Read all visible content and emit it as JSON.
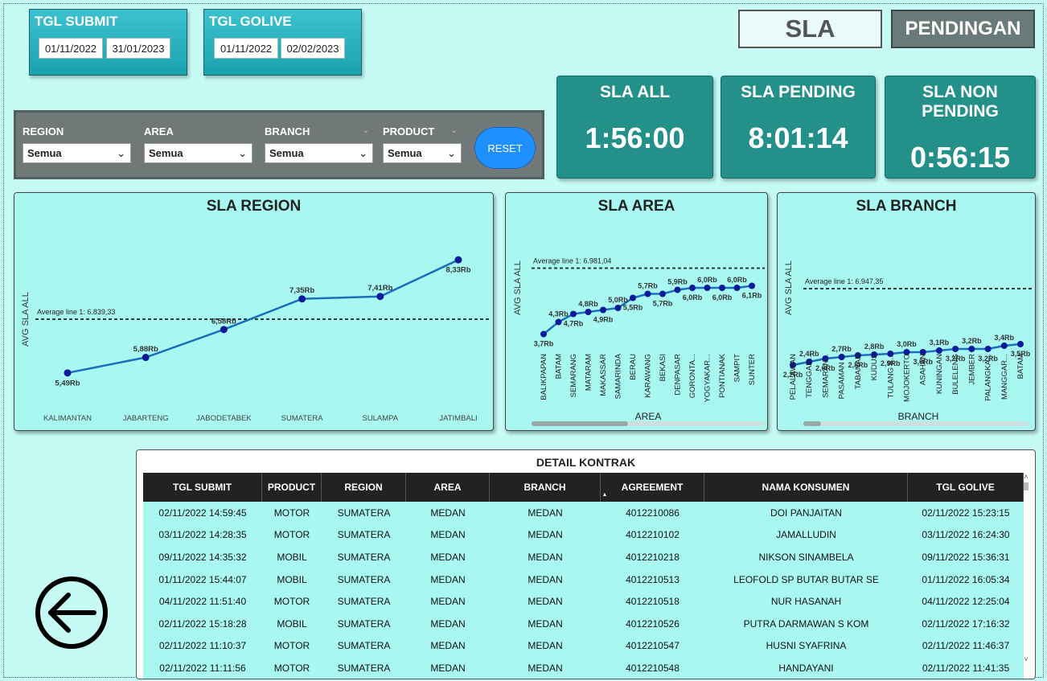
{
  "tgl_submit": {
    "title": "TGL SUBMIT",
    "from": "01/11/2022",
    "to": "31/01/2023"
  },
  "tgl_golive": {
    "title": "TGL GOLIVE",
    "from": "01/11/2022",
    "to": "02/02/2023"
  },
  "header": {
    "sla_label": "SLA",
    "pendingan_label": "PENDINGAN"
  },
  "kpis": {
    "all": {
      "title": "SLA ALL",
      "value": "1:56:00"
    },
    "pending": {
      "title": "SLA PENDING",
      "value": "8:01:14"
    },
    "non_pending": {
      "title": "SLA NON PENDING",
      "value": "0:56:15"
    }
  },
  "filters": {
    "region": {
      "label": "REGION",
      "value": "Semua"
    },
    "area": {
      "label": "AREA",
      "value": "Semua"
    },
    "branch": {
      "label": "BRANCH",
      "value": "Semua"
    },
    "product": {
      "label": "PRODUCT",
      "value": "Semua"
    },
    "reset_label": "RESET"
  },
  "colors": {
    "line": "#1a6fbd",
    "marker": "#0d1b9a",
    "kpi": "#23908a",
    "accent_button": "#1e90ff"
  },
  "icons": {
    "back": "arrow-left-circle-icon",
    "dropdown": "chevron-down-icon"
  },
  "chart_data": [
    {
      "type": "line",
      "title": "SLA REGION",
      "ylabel": "AVG SLA ALL",
      "xlabel": "",
      "categories": [
        "KALIMANTAN",
        "JABARTENG",
        "JABODETABEK",
        "SUMATERA",
        "SULAMPA",
        "JATIMBALI"
      ],
      "values": [
        5490,
        5880,
        6580,
        7350,
        7410,
        8330
      ],
      "labels": [
        "5,49Rb",
        "5,88Rb",
        "6,58Rb",
        "7,35Rb",
        "7,41Rb",
        "8,33Rb"
      ],
      "ylim": [
        4800,
        9000
      ],
      "average_line": {
        "label": "Average line 1: 6.839,33",
        "value": 6839.33
      }
    },
    {
      "type": "line",
      "title": "SLA AREA",
      "ylabel": "AVG SLA ALL",
      "xlabel": "AREA",
      "categories": [
        "BALIKPAPAN",
        "BATAM",
        "SEMARANG",
        "MATARAM",
        "MAKASSAR",
        "SAMARINDA",
        "BERAU",
        "KARAWANG",
        "BEKASI",
        "DENPASAR",
        "GORONTA...",
        "YOGYAKAR...",
        "PONTIANAK",
        "SAMPIT",
        "SUNTER"
      ],
      "values": [
        3700,
        4300,
        4700,
        4800,
        4900,
        5000,
        5500,
        5700,
        5700,
        5900,
        6000,
        6000,
        6000,
        6000,
        6100
      ],
      "labels": [
        "3,7Rb",
        "4,3Rb",
        "4,7Rb",
        "4,8Rb",
        "4,9Rb",
        "5,0Rb",
        "5,5Rb",
        "5,7Rb",
        "5,7Rb",
        "5,9Rb",
        "6,0Rb",
        "6,0Rb",
        "6,0Rb",
        "6,0Rb",
        "6,1Rb"
      ],
      "ylim": [
        0,
        10000
      ],
      "average_line": {
        "label": "Average line 1: 6.981,04",
        "value": 6981.04
      }
    },
    {
      "type": "line",
      "title": "SLA BRANCH",
      "ylabel": "AVG SLA ALL",
      "xlabel": "BRANCH",
      "categories": [
        "PELALAWAN",
        "TENGGAR...",
        "SEMARAN...",
        "PASAMAN ...",
        "TABANAN",
        "KUDUS",
        "TULANG B...",
        "MOJOKERTO",
        "ASAHAN",
        "KUNINGAN",
        "BULELENG",
        "JEMBER",
        "PALANGKA...",
        "MANGGAR...",
        "BATAM"
      ],
      "values": [
        2200,
        2400,
        2600,
        2700,
        2800,
        2850,
        2900,
        3000,
        3000,
        3100,
        3200,
        3200,
        3200,
        3400,
        3500
      ],
      "labels": [
        "2,2Rb",
        "2,4Rb",
        "2,6Rb",
        "2,7Rb",
        "2,8Rb",
        "2,8Rb",
        "2,9Rb",
        "3,0Rb",
        "3,0Rb",
        "3,1Rb",
        "3,2Rb",
        "3,2Rb",
        "3,2Rb",
        "3,4Rb",
        "3,5Rb"
      ],
      "ylim": [
        0,
        12000
      ],
      "average_line": {
        "label": "Average line 1: 6.947,35",
        "value": 6947.35
      }
    }
  ],
  "table": {
    "title": "DETAIL KONTRAK",
    "columns": [
      "TGL SUBMIT",
      "PRODUCT",
      "REGION",
      "AREA",
      "BRANCH",
      "AGREEMENT",
      "NAMA KONSUMEN",
      "TGL GOLIVE"
    ],
    "rows": [
      [
        "02/11/2022 14:59:45",
        "MOTOR",
        "SUMATERA",
        "MEDAN",
        "MEDAN",
        "4012210086",
        "DOI PANJAITAN",
        "02/11/2022 15:23:15"
      ],
      [
        "03/11/2022 14:28:35",
        "MOTOR",
        "SUMATERA",
        "MEDAN",
        "MEDAN",
        "4012210102",
        "JAMALLUDIN",
        "03/11/2022 16:24:30"
      ],
      [
        "09/11/2022 14:35:32",
        "MOBIL",
        "SUMATERA",
        "MEDAN",
        "MEDAN",
        "4012210218",
        "NIKSON SINAMBELA",
        "09/11/2022 15:36:31"
      ],
      [
        "01/11/2022 15:44:07",
        "MOBIL",
        "SUMATERA",
        "MEDAN",
        "MEDAN",
        "4012210513",
        "LEOFOLD SP BUTAR BUTAR SE",
        "01/11/2022 16:05:34"
      ],
      [
        "04/11/2022 11:51:40",
        "MOTOR",
        "SUMATERA",
        "MEDAN",
        "MEDAN",
        "4012210518",
        "NUR HASANAH",
        "04/11/2022 12:25:04"
      ],
      [
        "02/11/2022 15:18:28",
        "MOBIL",
        "SUMATERA",
        "MEDAN",
        "MEDAN",
        "4012210526",
        "PUTRA DARMAWAN S KOM",
        "02/11/2022 17:16:32"
      ],
      [
        "02/11/2022 11:10:37",
        "MOTOR",
        "SUMATERA",
        "MEDAN",
        "MEDAN",
        "4012210547",
        "HUSNI SYAFRINA",
        "02/11/2022 11:46:37"
      ],
      [
        "02/11/2022 11:11:56",
        "MOTOR",
        "SUMATERA",
        "MEDAN",
        "MEDAN",
        "4012210548",
        "HANDAYANI",
        "02/11/2022 11:41:35"
      ]
    ]
  }
}
